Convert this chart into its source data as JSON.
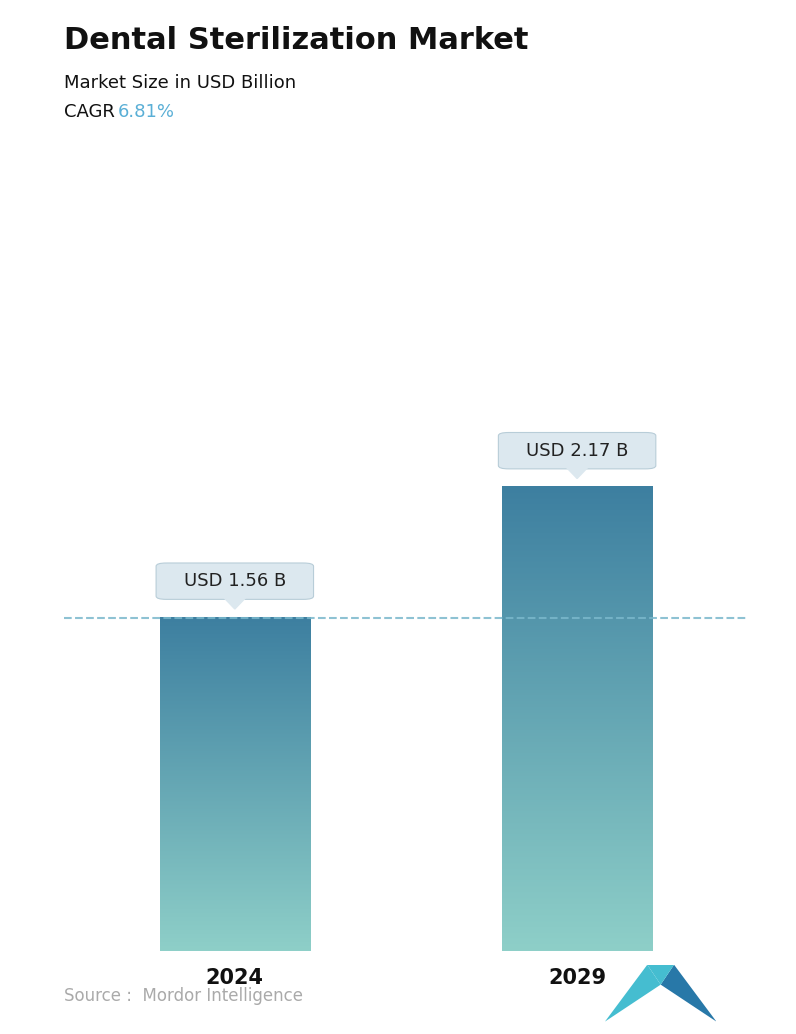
{
  "title": "Dental Sterilization Market",
  "subtitle": "Market Size in USD Billion",
  "cagr_label": "CAGR ",
  "cagr_value": "6.81%",
  "cagr_color": "#5aafd6",
  "categories": [
    "2024",
    "2029"
  ],
  "values": [
    1.56,
    2.17
  ],
  "bar_labels": [
    "USD 1.56 B",
    "USD 2.17 B"
  ],
  "bar_color_top": "#3d7fa0",
  "bar_color_bottom": "#8ecfc8",
  "dashed_line_color": "#7ab8cc",
  "dashed_line_y": 1.56,
  "source_text": "Source :  Mordor Intelligence",
  "source_color": "#aaaaaa",
  "background_color": "#ffffff",
  "title_fontsize": 22,
  "subtitle_fontsize": 13,
  "cagr_fontsize": 13,
  "bar_label_fontsize": 13,
  "xlabel_fontsize": 15,
  "source_fontsize": 12,
  "ylim": [
    0,
    2.9
  ]
}
